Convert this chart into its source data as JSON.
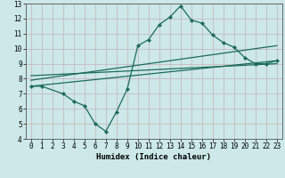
{
  "title": "",
  "xlabel": "Humidex (Indice chaleur)",
  "ylabel": "",
  "bg_color": "#cce8e8",
  "grid_color": "#b0d0d0",
  "line_color": "#1a6b5a",
  "xlim": [
    -0.5,
    23.5
  ],
  "ylim": [
    4,
    13
  ],
  "xticks": [
    0,
    1,
    2,
    3,
    4,
    5,
    6,
    7,
    8,
    9,
    10,
    11,
    12,
    13,
    14,
    15,
    16,
    17,
    18,
    19,
    20,
    21,
    22,
    23
  ],
  "yticks": [
    4,
    5,
    6,
    7,
    8,
    9,
    10,
    11,
    12,
    13
  ],
  "series1_x": [
    0,
    1,
    3,
    4,
    5,
    6,
    7,
    8,
    9,
    10,
    11,
    12,
    13,
    14,
    15,
    16,
    17,
    18,
    19,
    20,
    21,
    22,
    23
  ],
  "series1_y": [
    7.5,
    7.5,
    7.0,
    6.5,
    6.2,
    5.0,
    4.5,
    5.8,
    7.3,
    10.2,
    10.6,
    11.6,
    12.1,
    12.85,
    11.9,
    11.7,
    10.9,
    10.4,
    10.1,
    9.4,
    9.0,
    9.0,
    9.2
  ],
  "line1_x": [
    0,
    23
  ],
  "line1_y": [
    7.5,
    9.2
  ],
  "line2_x": [
    0,
    23
  ],
  "line2_y": [
    7.9,
    10.2
  ],
  "line3_x": [
    0,
    23
  ],
  "line3_y": [
    8.2,
    9.0
  ],
  "xlabel_fontsize": 6.5,
  "tick_fontsize": 5.5
}
